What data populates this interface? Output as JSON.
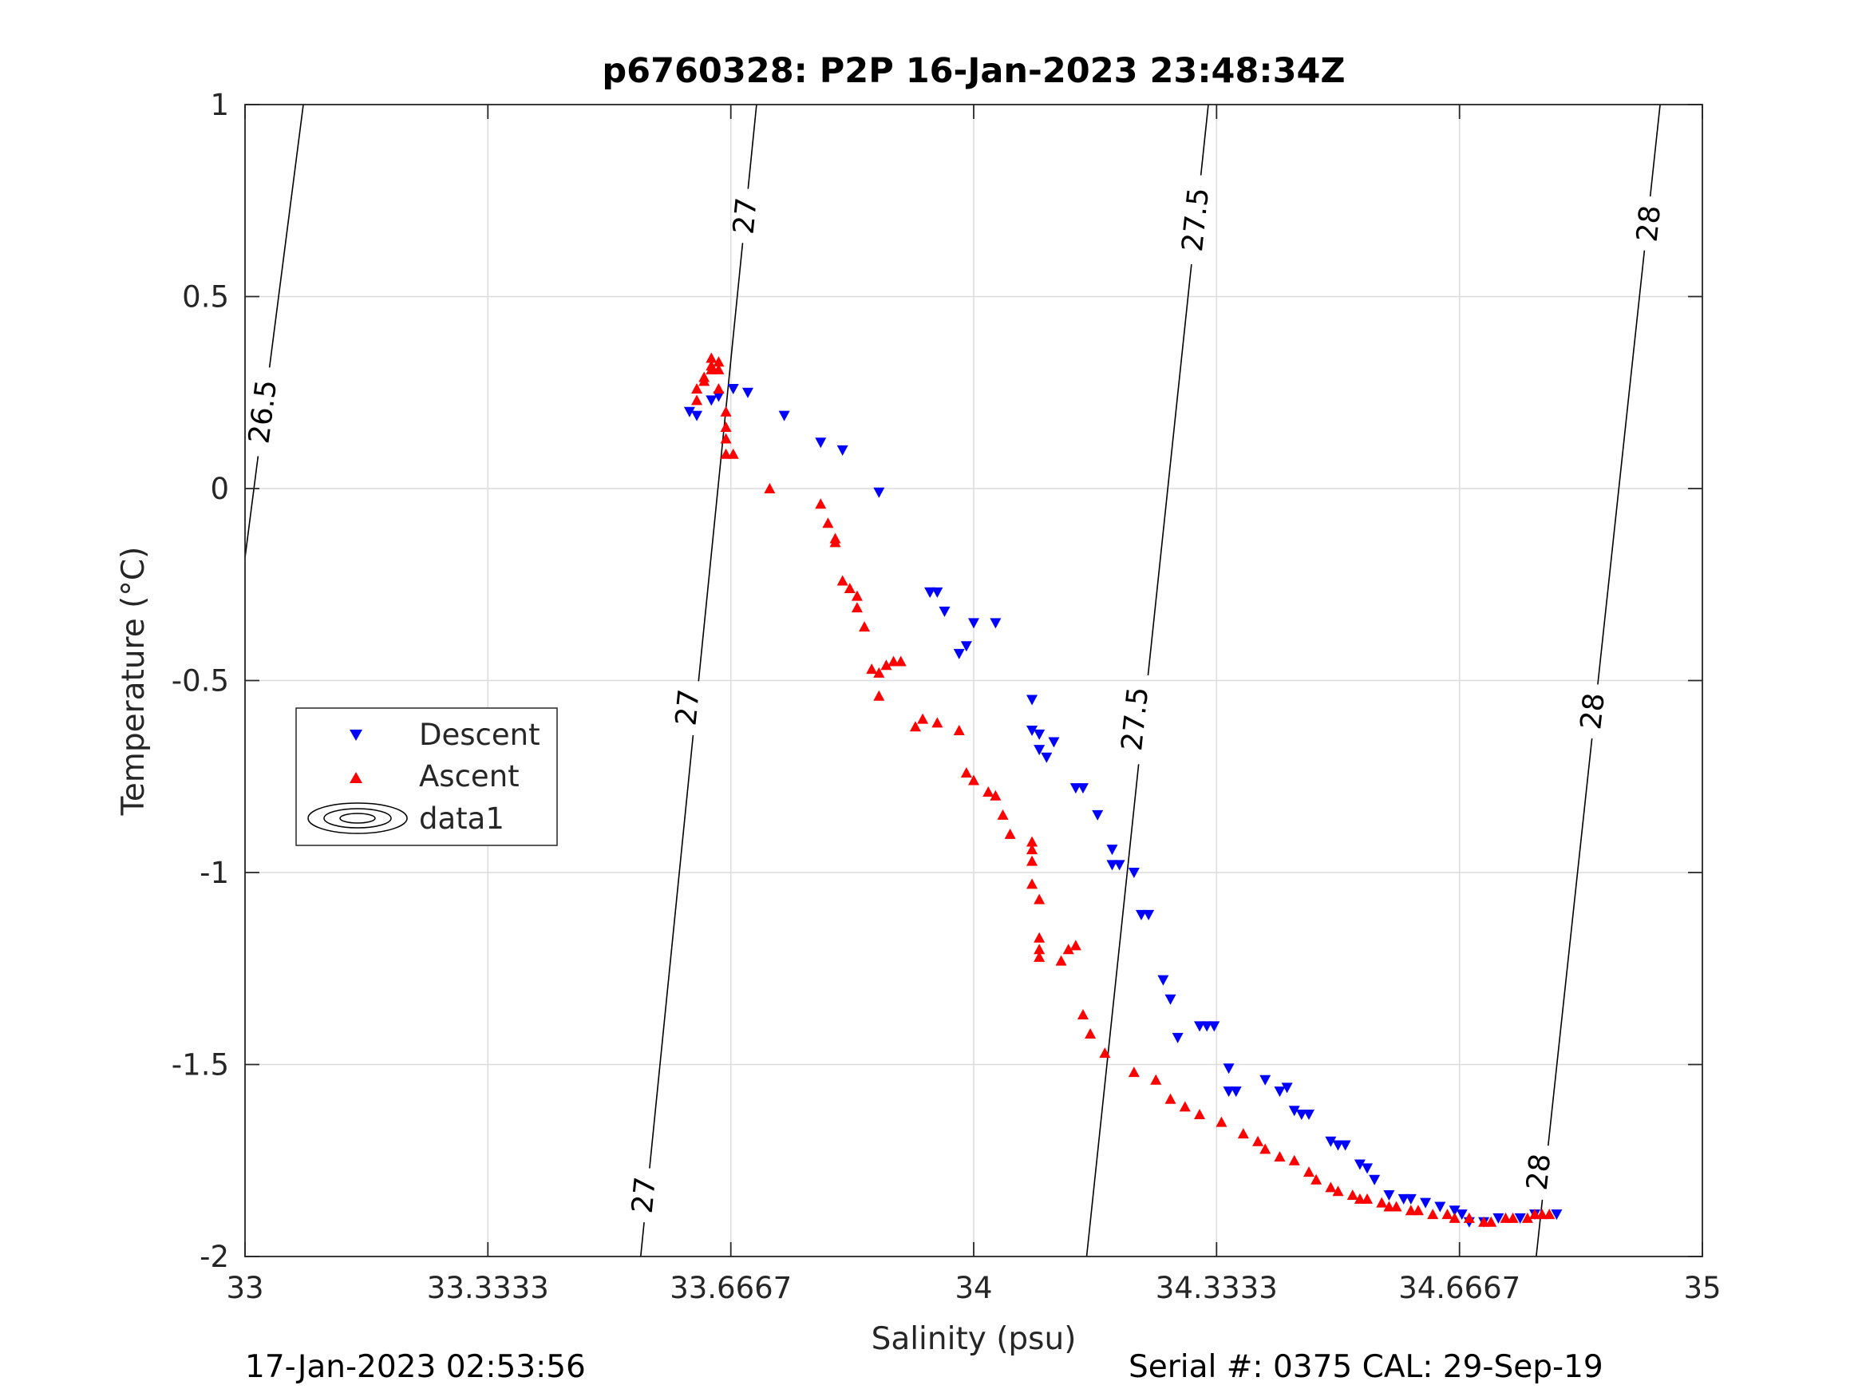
{
  "chart_data": {
    "type": "scatter",
    "title": "p6760328: P2P 16-Jan-2023 23:48:34Z",
    "xlabel": "Salinity (psu)",
    "ylabel": "Temperature (°C)",
    "xlim": [
      33,
      35
    ],
    "ylim": [
      -2,
      1
    ],
    "x_ticks": [
      33,
      33.3333,
      33.6667,
      34,
      34.3333,
      34.6667,
      35
    ],
    "x_tick_labels": [
      "33",
      "33.3333",
      "33.6667",
      "34",
      "34.3333",
      "34.6667",
      "35"
    ],
    "y_ticks": [
      -2,
      -1.5,
      -1,
      -0.5,
      0,
      0.5,
      1
    ],
    "y_tick_labels": [
      "-2",
      "-1.5",
      "-1",
      "-0.5",
      "0",
      "0.5",
      "1"
    ],
    "grid": true,
    "legend_placement": "middle-left",
    "legend": [
      "Descent",
      "Ascent",
      "data1"
    ],
    "colors": {
      "descent": "#0000ff",
      "ascent": "#ff0000",
      "contour": "#000000",
      "grid": "#dcdcdc",
      "axis": "#262626"
    },
    "series": [
      {
        "name": "Descent",
        "marker": "triangle-down",
        "x": [
          33.61,
          33.62,
          33.64,
          33.65,
          33.67,
          33.69,
          33.74,
          33.79,
          33.82,
          33.87,
          33.94,
          33.94,
          33.95,
          33.96,
          33.98,
          33.99,
          34.0,
          34.03,
          34.08,
          34.08,
          34.09,
          34.09,
          34.1,
          34.11,
          34.14,
          34.15,
          34.17,
          34.19,
          34.19,
          34.2,
          34.22,
          34.23,
          34.24,
          34.26,
          34.27,
          34.28,
          34.31,
          34.32,
          34.33,
          34.35,
          34.35,
          34.36,
          34.4,
          34.42,
          34.43,
          34.44,
          34.45,
          34.46,
          34.49,
          34.5,
          34.51,
          34.53,
          34.54,
          34.55,
          34.57,
          34.59,
          34.6,
          34.62,
          34.64,
          34.66,
          34.67,
          34.68,
          34.7,
          34.72,
          34.75,
          34.77,
          34.8
        ],
        "y": [
          0.2,
          0.19,
          0.23,
          0.24,
          0.26,
          0.25,
          0.19,
          0.12,
          0.1,
          -0.01,
          -0.27,
          -0.27,
          -0.27,
          -0.32,
          -0.43,
          -0.41,
          -0.35,
          -0.35,
          -0.55,
          -0.63,
          -0.64,
          -0.68,
          -0.7,
          -0.66,
          -0.78,
          -0.78,
          -0.85,
          -0.94,
          -0.98,
          -0.98,
          -1.0,
          -1.11,
          -1.11,
          -1.28,
          -1.33,
          -1.43,
          -1.4,
          -1.4,
          -1.4,
          -1.51,
          -1.57,
          -1.57,
          -1.54,
          -1.57,
          -1.56,
          -1.62,
          -1.63,
          -1.63,
          -1.7,
          -1.71,
          -1.71,
          -1.76,
          -1.77,
          -1.8,
          -1.84,
          -1.85,
          -1.85,
          -1.86,
          -1.87,
          -1.88,
          -1.89,
          -1.91,
          -1.91,
          -1.9,
          -1.9,
          -1.89,
          -1.89
        ]
      },
      {
        "name": "Ascent",
        "marker": "triangle-up",
        "x": [
          33.62,
          33.62,
          33.63,
          33.63,
          33.64,
          33.64,
          33.64,
          33.65,
          33.65,
          33.65,
          33.66,
          33.66,
          33.66,
          33.66,
          33.67,
          33.72,
          33.79,
          33.8,
          33.81,
          33.81,
          33.82,
          33.83,
          33.84,
          33.84,
          33.85,
          33.86,
          33.87,
          33.87,
          33.88,
          33.89,
          33.9,
          33.92,
          33.93,
          33.95,
          33.98,
          33.99,
          34.0,
          34.02,
          34.03,
          34.04,
          34.05,
          34.08,
          34.08,
          34.08,
          34.08,
          34.09,
          34.09,
          34.09,
          34.09,
          34.12,
          34.13,
          34.14,
          34.15,
          34.16,
          34.18,
          34.22,
          34.25,
          34.27,
          34.29,
          34.31,
          34.34,
          34.37,
          34.39,
          34.4,
          34.42,
          34.44,
          34.46,
          34.47,
          34.49,
          34.5,
          34.52,
          34.53,
          34.54,
          34.56,
          34.57,
          34.58,
          34.6,
          34.61,
          34.63,
          34.65,
          34.66,
          34.68,
          34.7,
          34.71,
          34.73,
          34.74,
          34.76,
          34.77,
          34.78,
          34.79
        ],
        "y": [
          0.23,
          0.26,
          0.28,
          0.29,
          0.31,
          0.32,
          0.34,
          0.33,
          0.31,
          0.26,
          0.2,
          0.16,
          0.13,
          0.09,
          0.09,
          0.0,
          -0.04,
          -0.09,
          -0.13,
          -0.14,
          -0.24,
          -0.26,
          -0.28,
          -0.31,
          -0.36,
          -0.47,
          -0.48,
          -0.54,
          -0.46,
          -0.45,
          -0.45,
          -0.62,
          -0.6,
          -0.61,
          -0.63,
          -0.74,
          -0.76,
          -0.79,
          -0.8,
          -0.85,
          -0.9,
          -0.92,
          -0.94,
          -0.97,
          -1.03,
          -1.07,
          -1.17,
          -1.2,
          -1.22,
          -1.23,
          -1.2,
          -1.19,
          -1.37,
          -1.42,
          -1.47,
          -1.52,
          -1.54,
          -1.59,
          -1.61,
          -1.63,
          -1.65,
          -1.68,
          -1.7,
          -1.72,
          -1.74,
          -1.75,
          -1.78,
          -1.8,
          -1.82,
          -1.83,
          -1.84,
          -1.85,
          -1.85,
          -1.86,
          -1.87,
          -1.87,
          -1.88,
          -1.88,
          -1.89,
          -1.89,
          -1.9,
          -1.9,
          -1.91,
          -1.91,
          -1.9,
          -1.9,
          -1.9,
          -1.89,
          -1.89,
          -1.89
        ]
      }
    ],
    "contours": [
      {
        "level": "26.5",
        "points": [
          [
            33.08,
            1.0
          ],
          [
            33.0,
            -0.18
          ]
        ],
        "labels": [
          {
            "text": "26.5",
            "x": 33.025,
            "y": 0.2
          }
        ]
      },
      {
        "level": "27",
        "points": [
          [
            33.702,
            1.0
          ],
          [
            33.543,
            -2.0
          ]
        ],
        "labels": [
          {
            "text": "27",
            "x": 33.687,
            "y": 0.71
          },
          {
            "text": "27",
            "x": 33.608,
            "y": -0.57
          },
          {
            "text": "27",
            "x": 33.548,
            "y": -1.84
          }
        ]
      },
      {
        "level": "27.5",
        "points": [
          [
            34.322,
            1.0
          ],
          [
            34.155,
            -2.0
          ]
        ],
        "labels": [
          {
            "text": "27.5",
            "x": 34.305,
            "y": 0.7
          },
          {
            "text": "27.5",
            "x": 34.222,
            "y": -0.6
          }
        ]
      },
      {
        "level": "28",
        "points": [
          [
            34.942,
            1.0
          ],
          [
            34.772,
            -2.0
          ]
        ],
        "labels": [
          {
            "text": "28",
            "x": 34.927,
            "y": 0.69
          },
          {
            "text": "28",
            "x": 34.85,
            "y": -0.58
          },
          {
            "text": "28",
            "x": 34.776,
            "y": -1.78
          }
        ]
      }
    ]
  },
  "footer": {
    "left": "17-Jan-2023 02:53:56",
    "right": "Serial #: 0375  CAL: 29-Sep-19"
  }
}
